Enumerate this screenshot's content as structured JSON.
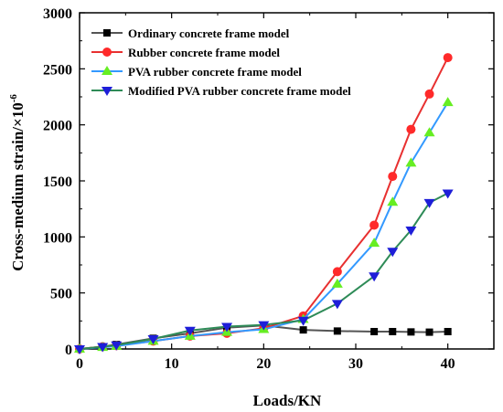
{
  "chart_data": {
    "type": "line",
    "title": "",
    "xlabel": "Loads/KN",
    "ylabel": "Cross-medium strain/×10",
    "ylabel_exponent": "-6",
    "xlim": [
      0,
      45
    ],
    "ylim": [
      0,
      3000
    ],
    "xticks": [
      0,
      10,
      20,
      30,
      40
    ],
    "yticks": [
      0,
      500,
      1000,
      1500,
      2000,
      2500,
      3000
    ],
    "minor_x_step": 5,
    "minor_y_step": 250,
    "grid": false,
    "legend_position": "top-left",
    "series": [
      {
        "name": "Ordinary concrete frame model",
        "color": "#000000",
        "line_color": "#555555",
        "marker": "square",
        "x": [
          0,
          2.5,
          4,
          8,
          12,
          16,
          20,
          24.3,
          28,
          32,
          34,
          36,
          38,
          40
        ],
        "y": [
          0,
          20,
          40,
          95,
          140,
          190,
          210,
          170,
          160,
          155,
          155,
          152,
          150,
          155
        ]
      },
      {
        "name": "Rubber concrete frame model",
        "color": "#ff2a2a",
        "line_color": "#e83030",
        "marker": "circle",
        "x": [
          0,
          2.5,
          4,
          8,
          12,
          16,
          20,
          24.3,
          28,
          32,
          34,
          36,
          38,
          40
        ],
        "y": [
          0,
          20,
          30,
          70,
          115,
          140,
          185,
          295,
          690,
          1105,
          1540,
          1960,
          2275,
          2600
        ]
      },
      {
        "name": "PVA rubber concrete frame model",
        "color": "#66ee22",
        "line_color": "#3399ff",
        "marker": "triangle-up",
        "x": [
          0,
          2.5,
          4,
          8,
          12,
          16,
          20,
          24.3,
          28,
          32,
          34,
          36,
          38,
          40
        ],
        "y": [
          0,
          15,
          25,
          70,
          115,
          150,
          175,
          265,
          580,
          945,
          1310,
          1660,
          1930,
          2200
        ]
      },
      {
        "name": "Modified PVA rubber concrete frame model",
        "color": "#1e1ed8",
        "line_color": "#2e8b57",
        "marker": "triangle-down",
        "x": [
          0,
          2.5,
          4,
          8,
          12,
          16,
          20,
          24.3,
          28,
          32,
          34,
          36,
          38,
          40
        ],
        "y": [
          0,
          20,
          35,
          90,
          165,
          200,
          215,
          255,
          405,
          650,
          870,
          1060,
          1305,
          1390
        ]
      }
    ]
  }
}
